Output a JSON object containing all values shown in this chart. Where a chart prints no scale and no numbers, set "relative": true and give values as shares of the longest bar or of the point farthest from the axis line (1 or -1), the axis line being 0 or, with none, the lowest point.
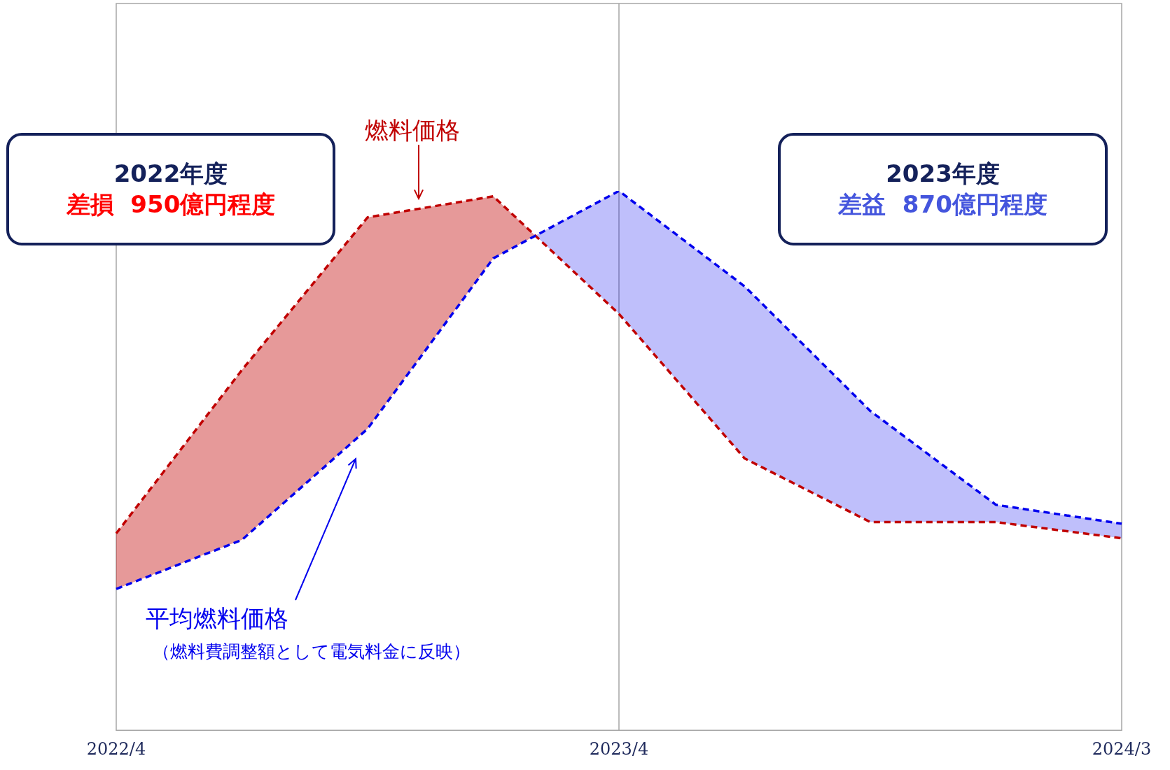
{
  "chart_data": {
    "type": "line",
    "relative": true,
    "categories": [
      "2022/4",
      null,
      null,
      null,
      "2023/4",
      null,
      null,
      null,
      "2024/3"
    ],
    "series": [
      {
        "name": "燃料価格",
        "color": "#c00000",
        "values": [
          0.365,
          0.668,
          0.951,
          0.99,
          0.772,
          0.504,
          0.386,
          0.386,
          0.356
        ],
        "upper": [
          0.365,
          0.668,
          0.951,
          0.99,
          0.772,
          null,
          null,
          null,
          null
        ],
        "lower": [
          0.262,
          0.353,
          0.559,
          0.875,
          1.0,
          null,
          null,
          null,
          null
        ]
      },
      {
        "name": "平均燃料価格",
        "color": "#0000ee",
        "values": [
          0.262,
          0.353,
          0.559,
          0.875,
          1.0,
          0.823,
          0.592,
          0.418,
          0.383
        ],
        "upper": [
          null,
          null,
          null,
          0.875,
          1.0,
          0.823,
          0.592,
          0.418,
          0.383
        ],
        "lower": [
          null,
          null,
          null,
          0.99,
          0.772,
          0.504,
          0.386,
          0.386,
          0.356
        ]
      }
    ],
    "ref_lines": [
      {
        "axis": "x",
        "value": "2023/4",
        "color": "#a6a6a6"
      }
    ],
    "annotations": [
      "2022年度",
      "差損  950億円程度",
      "2023年度",
      "差益  870億円程度",
      "（燃料費調整額として電気料金に反映）"
    ],
    "line_style": "dashed",
    "marker": "none",
    "grid": false,
    "legend": false
  }
}
